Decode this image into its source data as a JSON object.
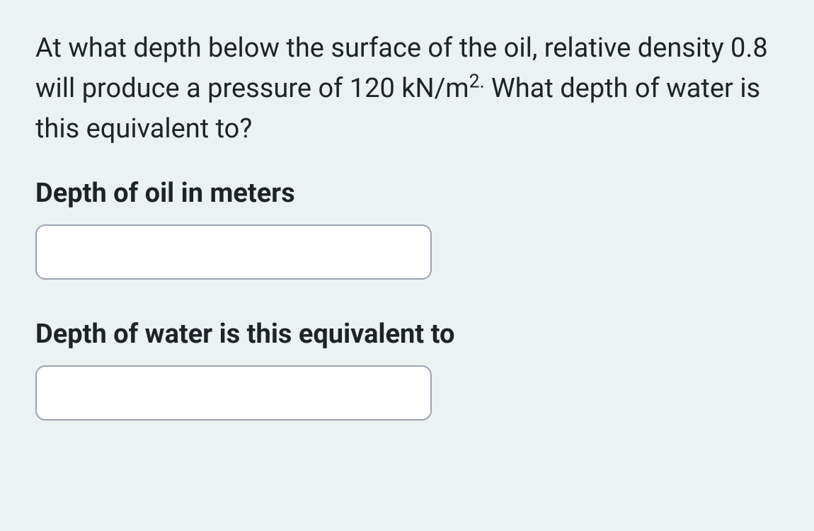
{
  "question": {
    "text_part1": " At what depth below the surface of the oil, relative density 0.8 will produce a pressure of 120 kN/m",
    "superscript": "2.",
    "text_part2": " What depth of water is this equivalent to?"
  },
  "fields": [
    {
      "label": "Depth of oil in meters",
      "value": ""
    },
    {
      "label": "Depth of water is this equivalent to",
      "value": ""
    }
  ],
  "colors": {
    "background": "#ecf2f2",
    "text": "#1f2328",
    "input_bg": "#ffffff",
    "input_border": "#9ca3af"
  }
}
